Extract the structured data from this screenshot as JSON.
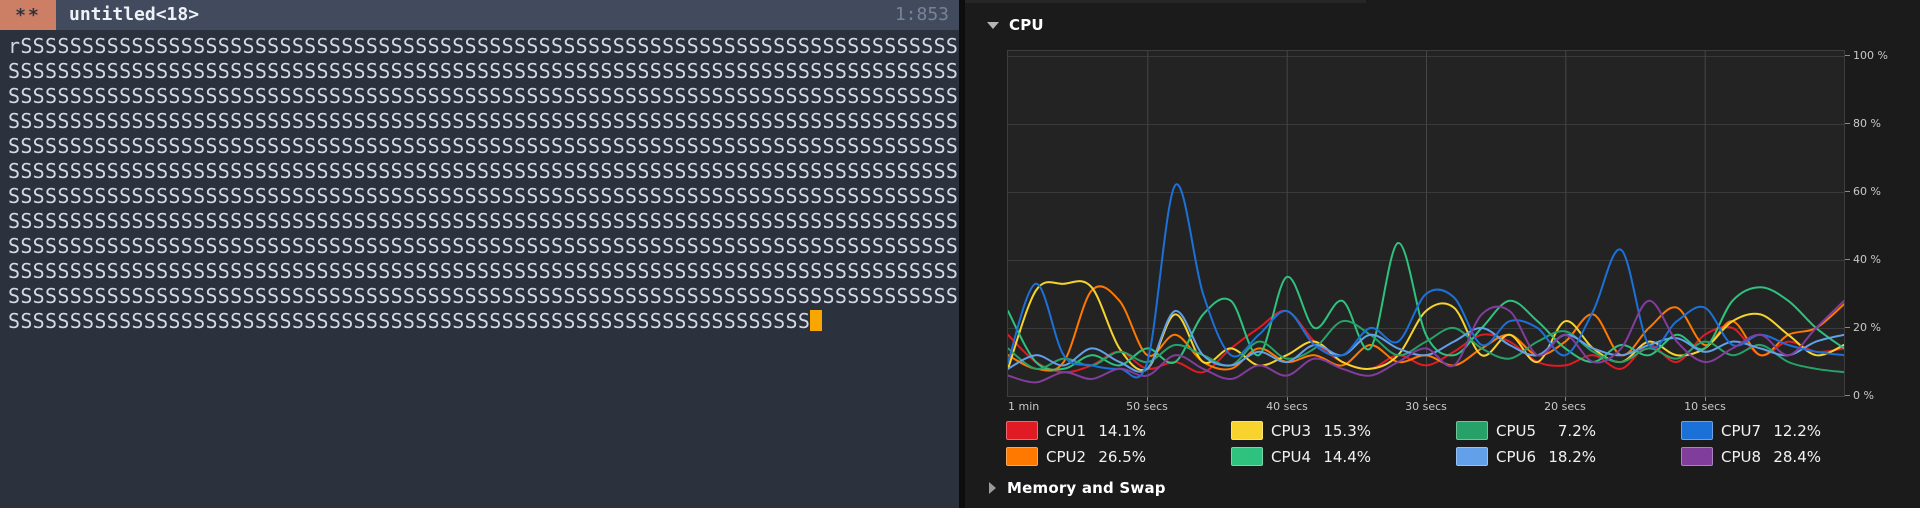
{
  "editor": {
    "modified_badge": "**",
    "buffer_title": "untitled<18>",
    "cursor_position": "1:853",
    "cursor_color": "#f9a602",
    "text": {
      "first_char": "r",
      "fill_char": "S",
      "full_line_length": 77,
      "full_line_count": 11,
      "last_line_length": 65
    }
  },
  "monitor": {
    "cpu_section": {
      "label": "CPU",
      "expanded": true
    },
    "memory_section": {
      "label": "Memory and Swap",
      "expanded": false
    },
    "legend": [
      {
        "name": "CPU1",
        "value": "14.1%",
        "color": "#e01b24"
      },
      {
        "name": "CPU2",
        "value": "26.5%",
        "color": "#ff7800"
      },
      {
        "name": "CPU3",
        "value": "15.3%",
        "color": "#f6d32d"
      },
      {
        "name": "CPU4",
        "value": "14.4%",
        "color": "#2ec27e"
      },
      {
        "name": "CPU5",
        "value": "7.2%",
        "color": "#26a269"
      },
      {
        "name": "CPU6",
        "value": "18.2%",
        "color": "#62a0ea"
      },
      {
        "name": "CPU7",
        "value": "12.2%",
        "color": "#1c71d8"
      },
      {
        "name": "CPU8",
        "value": "28.4%",
        "color": "#813d9c"
      }
    ]
  },
  "chart_data": {
    "type": "line",
    "title": "CPU",
    "ylim": [
      0,
      100
    ],
    "grid": true,
    "legend_position": "bottom",
    "y_ticks": [
      "100 %",
      "80 %",
      "60 %",
      "40 %",
      "20 %",
      "0 %"
    ],
    "y_tick_values": [
      100,
      80,
      60,
      40,
      20,
      0
    ],
    "x_ticks": [
      "1 min",
      "50 secs",
      "40 secs",
      "30 secs",
      "20 secs",
      "10 secs"
    ],
    "x_tick_seconds": [
      60,
      50,
      40,
      30,
      20,
      10
    ],
    "x_range_seconds": [
      60,
      0
    ],
    "x": [
      60,
      58,
      56,
      54,
      52,
      50,
      48,
      46,
      44,
      42,
      40,
      38,
      36,
      34,
      32,
      30,
      28,
      26,
      24,
      22,
      20,
      18,
      16,
      14,
      12,
      10,
      8,
      6,
      4,
      2,
      0
    ],
    "series": [
      {
        "name": "CPU1",
        "color": "#e01b24",
        "values": [
          18,
          10,
          7,
          9,
          13,
          8,
          10,
          7,
          14,
          20,
          25,
          16,
          10,
          8,
          12,
          9,
          13,
          18,
          16,
          10,
          9,
          12,
          8,
          15,
          10,
          18,
          20,
          12,
          16,
          13,
          14
        ]
      },
      {
        "name": "CPU2",
        "color": "#ff7800",
        "values": [
          12,
          8,
          10,
          31,
          28,
          12,
          18,
          10,
          8,
          14,
          10,
          12,
          9,
          15,
          10,
          12,
          9,
          14,
          18,
          12,
          16,
          24,
          12,
          20,
          26,
          15,
          22,
          12,
          18,
          20,
          27
        ]
      },
      {
        "name": "CPU3",
        "color": "#f6d32d",
        "values": [
          8,
          31,
          33,
          32,
          14,
          8,
          24,
          10,
          14,
          9,
          12,
          16,
          10,
          8,
          12,
          25,
          26,
          12,
          18,
          10,
          22,
          14,
          10,
          16,
          12,
          14,
          22,
          24,
          18,
          12,
          15
        ]
      },
      {
        "name": "CPU4",
        "color": "#2ec27e",
        "values": [
          25,
          10,
          8,
          12,
          9,
          14,
          10,
          24,
          28,
          12,
          35,
          20,
          28,
          14,
          45,
          18,
          12,
          20,
          28,
          22,
          14,
          10,
          15,
          12,
          18,
          14,
          28,
          32,
          28,
          20,
          14
        ]
      },
      {
        "name": "CPU5",
        "color": "#26a269",
        "values": [
          14,
          8,
          11,
          9,
          13,
          10,
          15,
          12,
          9,
          16,
          11,
          14,
          22,
          18,
          12,
          16,
          20,
          14,
          11,
          16,
          19,
          13,
          10,
          14,
          11,
          16,
          12,
          15,
          10,
          8,
          7
        ]
      },
      {
        "name": "CPU6",
        "color": "#62a0ea",
        "values": [
          8,
          12,
          9,
          14,
          10,
          8,
          25,
          12,
          9,
          13,
          10,
          15,
          12,
          18,
          14,
          12,
          16,
          20,
          15,
          12,
          18,
          14,
          12,
          15,
          17,
          13,
          16,
          14,
          12,
          16,
          18
        ]
      },
      {
        "name": "CPU7",
        "color": "#1c71d8",
        "values": [
          10,
          33,
          12,
          9,
          8,
          10,
          62,
          30,
          12,
          18,
          25,
          15,
          12,
          20,
          16,
          30,
          29,
          15,
          22,
          20,
          12,
          25,
          43,
          15,
          22,
          26,
          15,
          18,
          15,
          13,
          12
        ]
      },
      {
        "name": "CPU8",
        "color": "#813d9c",
        "values": [
          6,
          4,
          7,
          5,
          8,
          6,
          12,
          8,
          5,
          9,
          6,
          11,
          8,
          6,
          10,
          14,
          9,
          24,
          25,
          12,
          18,
          10,
          14,
          28,
          16,
          10,
          14,
          18,
          12,
          20,
          28
        ]
      }
    ]
  }
}
